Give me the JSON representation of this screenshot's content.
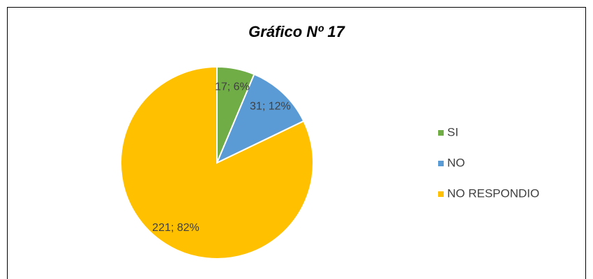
{
  "chart_data": {
    "type": "pie",
    "title": "Gráfico Nº 17",
    "categories": [
      "SI",
      "NO",
      "NO RESPONDIO"
    ],
    "values": [
      17,
      31,
      221
    ],
    "value_labels": [
      "17; 6%",
      "31; 12%",
      "221; 82%"
    ],
    "colors": [
      "#70ad47",
      "#5b9bd5",
      "#ffc000"
    ],
    "legend": "right"
  }
}
